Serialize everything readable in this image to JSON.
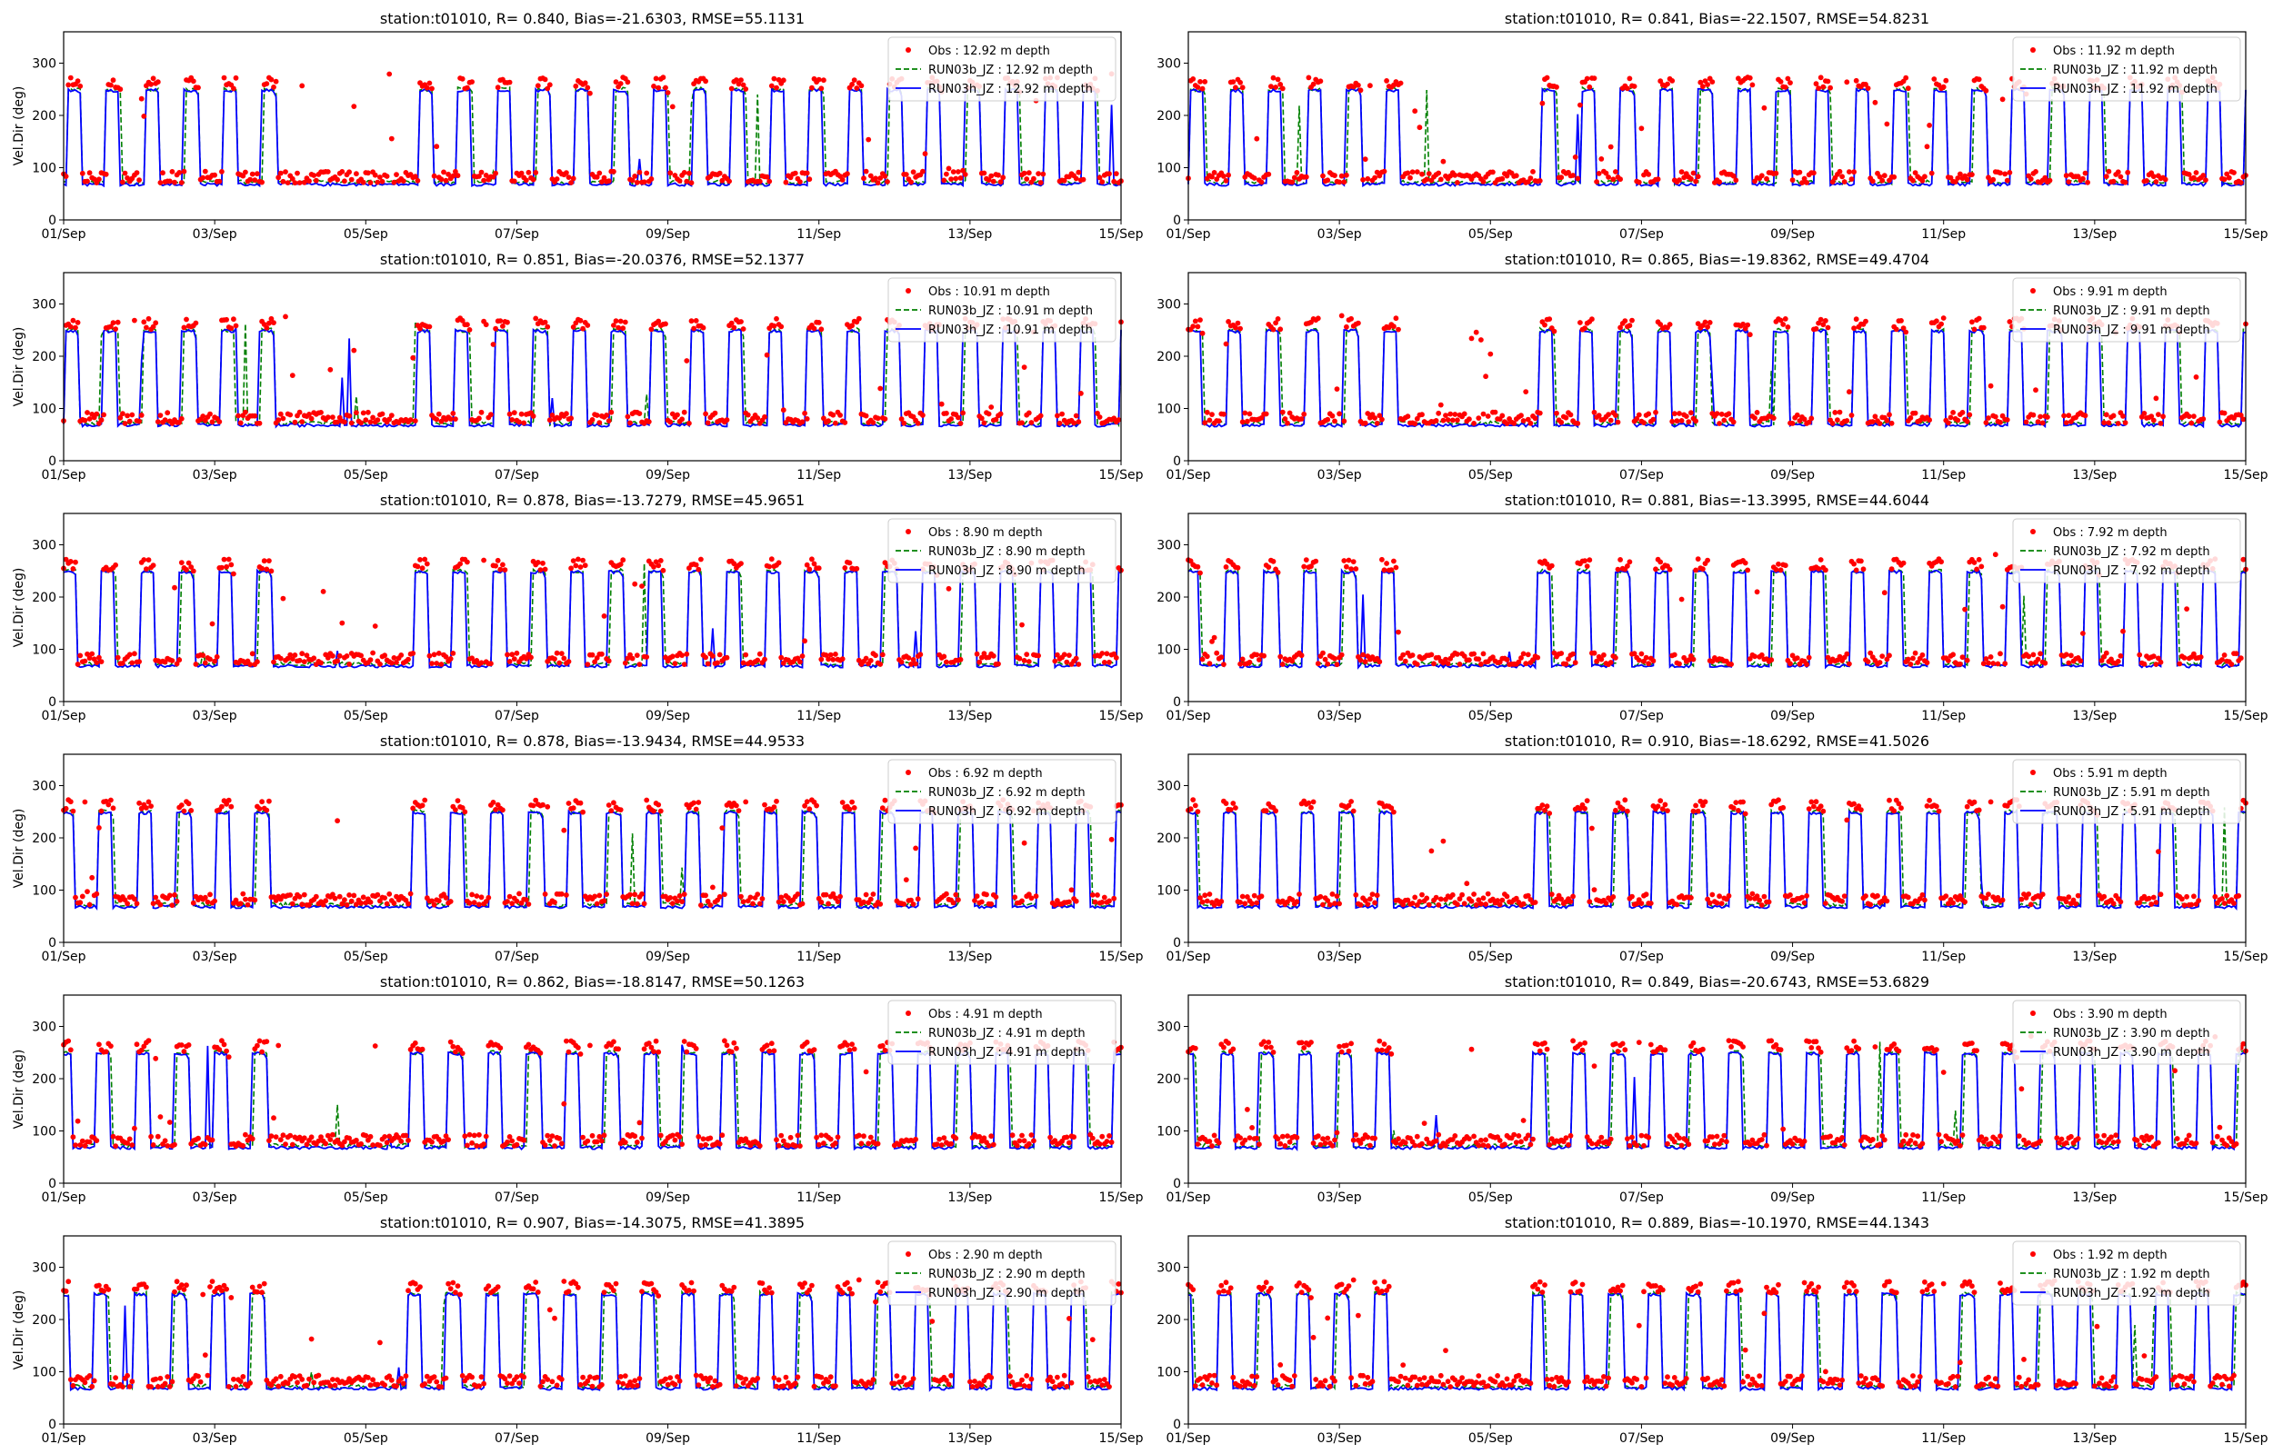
{
  "figure": {
    "ylabel": "Vel.Dir (deg)",
    "xticks": [
      "01/Sep",
      "03/Sep",
      "05/Sep",
      "07/Sep",
      "09/Sep",
      "11/Sep",
      "13/Sep",
      "15/Sep"
    ],
    "yticks": [
      0,
      100,
      200,
      300
    ],
    "colors": {
      "obs": "#ff0000",
      "run03b": "#008000",
      "run03h": "#0000ff",
      "axes": "#000000"
    }
  },
  "chart_data": [
    {
      "type": "line",
      "title": "station:t01010, R= 0.840, Bias=-21.6303, RMSE=55.1131",
      "depth": "12.92",
      "ylim": [
        0,
        360
      ],
      "xlim": [
        "01/Sep",
        "15/Sep"
      ],
      "legend": "top-right",
      "series": [
        {
          "name": "Obs : 12.92 m depth",
          "style": "dots",
          "levels": {
            "high": 262,
            "low": 82
          }
        },
        {
          "name": "RUN03b_JZ : 12.92 m depth",
          "style": "dashed",
          "levels": {
            "high": 250,
            "low": 72
          }
        },
        {
          "name": "RUN03h_JZ : 12.92 m depth",
          "style": "solid",
          "levels": {
            "high": 248,
            "low": 68
          }
        }
      ]
    },
    {
      "type": "line",
      "title": "station:t01010, R= 0.841, Bias=-22.1507, RMSE=54.8231",
      "depth": "11.92",
      "ylim": [
        0,
        360
      ],
      "xlim": [
        "01/Sep",
        "15/Sep"
      ],
      "legend": "top-right",
      "series": [
        {
          "name": "Obs : 11.92 m depth",
          "style": "dots",
          "levels": {
            "high": 262,
            "low": 82
          }
        },
        {
          "name": "RUN03b_JZ : 11.92 m depth",
          "style": "dashed",
          "levels": {
            "high": 250,
            "low": 72
          }
        },
        {
          "name": "RUN03h_JZ : 11.92 m depth",
          "style": "solid",
          "levels": {
            "high": 248,
            "low": 68
          }
        }
      ]
    },
    {
      "type": "line",
      "title": "station:t01010, R= 0.851, Bias=-20.0376, RMSE=52.1377",
      "depth": "10.91",
      "ylim": [
        0,
        360
      ],
      "xlim": [
        "01/Sep",
        "15/Sep"
      ],
      "legend": "top-right",
      "series": [
        {
          "name": "Obs : 10.91 m depth",
          "style": "dots",
          "levels": {
            "high": 262,
            "low": 82
          }
        },
        {
          "name": "RUN03b_JZ : 10.91 m depth",
          "style": "dashed",
          "levels": {
            "high": 250,
            "low": 72
          }
        },
        {
          "name": "RUN03h_JZ : 10.91 m depth",
          "style": "solid",
          "levels": {
            "high": 248,
            "low": 68
          }
        }
      ]
    },
    {
      "type": "line",
      "title": "station:t01010, R= 0.865, Bias=-19.8362, RMSE=49.4704",
      "depth": "9.91",
      "ylim": [
        0,
        360
      ],
      "xlim": [
        "01/Sep",
        "15/Sep"
      ],
      "legend": "top-right",
      "series": [
        {
          "name": "Obs : 9.91 m depth",
          "style": "dots",
          "levels": {
            "high": 262,
            "low": 82
          }
        },
        {
          "name": "RUN03b_JZ : 9.91 m depth",
          "style": "dashed",
          "levels": {
            "high": 250,
            "low": 72
          }
        },
        {
          "name": "RUN03h_JZ : 9.91 m depth",
          "style": "solid",
          "levels": {
            "high": 248,
            "low": 68
          }
        }
      ]
    },
    {
      "type": "line",
      "title": "station:t01010, R= 0.878, Bias=-13.7279, RMSE=45.9651",
      "depth": "8.90",
      "ylim": [
        0,
        360
      ],
      "xlim": [
        "01/Sep",
        "15/Sep"
      ],
      "legend": "top-right",
      "series": [
        {
          "name": "Obs : 8.90 m depth",
          "style": "dots",
          "levels": {
            "high": 262,
            "low": 82
          }
        },
        {
          "name": "RUN03b_JZ : 8.90 m depth",
          "style": "dashed",
          "levels": {
            "high": 250,
            "low": 72
          }
        },
        {
          "name": "RUN03h_JZ : 8.90 m depth",
          "style": "solid",
          "levels": {
            "high": 248,
            "low": 68
          }
        }
      ]
    },
    {
      "type": "line",
      "title": "station:t01010, R= 0.881, Bias=-13.3995, RMSE=44.6044",
      "depth": "7.92",
      "ylim": [
        0,
        360
      ],
      "xlim": [
        "01/Sep",
        "15/Sep"
      ],
      "legend": "top-right",
      "series": [
        {
          "name": "Obs : 7.92 m depth",
          "style": "dots",
          "levels": {
            "high": 262,
            "low": 82
          }
        },
        {
          "name": "RUN03b_JZ : 7.92 m depth",
          "style": "dashed",
          "levels": {
            "high": 250,
            "low": 72
          }
        },
        {
          "name": "RUN03h_JZ : 7.92 m depth",
          "style": "solid",
          "levels": {
            "high": 248,
            "low": 68
          }
        }
      ]
    },
    {
      "type": "line",
      "title": "station:t01010, R= 0.878, Bias=-13.9434, RMSE=44.9533",
      "depth": "6.92",
      "ylim": [
        0,
        360
      ],
      "xlim": [
        "01/Sep",
        "15/Sep"
      ],
      "legend": "top-right",
      "series": [
        {
          "name": "Obs : 6.92 m depth",
          "style": "dots",
          "levels": {
            "high": 262,
            "low": 82
          }
        },
        {
          "name": "RUN03b_JZ : 6.92 m depth",
          "style": "dashed",
          "levels": {
            "high": 250,
            "low": 72
          }
        },
        {
          "name": "RUN03h_JZ : 6.92 m depth",
          "style": "solid",
          "levels": {
            "high": 248,
            "low": 68
          }
        }
      ]
    },
    {
      "type": "line",
      "title": "station:t01010, R= 0.910, Bias=-18.6292, RMSE=41.5026",
      "depth": "5.91",
      "ylim": [
        0,
        360
      ],
      "xlim": [
        "01/Sep",
        "15/Sep"
      ],
      "legend": "top-right",
      "series": [
        {
          "name": "Obs : 5.91 m depth",
          "style": "dots",
          "levels": {
            "high": 262,
            "low": 82
          }
        },
        {
          "name": "RUN03b_JZ : 5.91 m depth",
          "style": "dashed",
          "levels": {
            "high": 250,
            "low": 72
          }
        },
        {
          "name": "RUN03h_JZ : 5.91 m depth",
          "style": "solid",
          "levels": {
            "high": 248,
            "low": 68
          }
        }
      ]
    },
    {
      "type": "line",
      "title": "station:t01010, R= 0.862, Bias=-18.8147, RMSE=50.1263",
      "depth": "4.91",
      "ylim": [
        0,
        360
      ],
      "xlim": [
        "01/Sep",
        "15/Sep"
      ],
      "legend": "top-right",
      "series": [
        {
          "name": "Obs : 4.91 m depth",
          "style": "dots",
          "levels": {
            "high": 262,
            "low": 82
          }
        },
        {
          "name": "RUN03b_JZ : 4.91 m depth",
          "style": "dashed",
          "levels": {
            "high": 250,
            "low": 72
          }
        },
        {
          "name": "RUN03h_JZ : 4.91 m depth",
          "style": "solid",
          "levels": {
            "high": 248,
            "low": 68
          }
        }
      ]
    },
    {
      "type": "line",
      "title": "station:t01010, R= 0.849, Bias=-20.6743, RMSE=53.6829",
      "depth": "3.90",
      "ylim": [
        0,
        360
      ],
      "xlim": [
        "01/Sep",
        "15/Sep"
      ],
      "legend": "top-right",
      "series": [
        {
          "name": "Obs : 3.90 m depth",
          "style": "dots",
          "levels": {
            "high": 262,
            "low": 82
          }
        },
        {
          "name": "RUN03b_JZ : 3.90 m depth",
          "style": "dashed",
          "levels": {
            "high": 250,
            "low": 72
          }
        },
        {
          "name": "RUN03h_JZ : 3.90 m depth",
          "style": "solid",
          "levels": {
            "high": 248,
            "low": 68
          }
        }
      ]
    },
    {
      "type": "line",
      "title": "station:t01010, R= 0.907, Bias=-14.3075, RMSE=41.3895",
      "depth": "2.90",
      "ylim": [
        0,
        360
      ],
      "xlim": [
        "01/Sep",
        "15/Sep"
      ],
      "legend": "top-right",
      "series": [
        {
          "name": "Obs : 2.90 m depth",
          "style": "dots",
          "levels": {
            "high": 262,
            "low": 82
          }
        },
        {
          "name": "RUN03b_JZ : 2.90 m depth",
          "style": "dashed",
          "levels": {
            "high": 250,
            "low": 72
          }
        },
        {
          "name": "RUN03h_JZ : 2.90 m depth",
          "style": "solid",
          "levels": {
            "high": 248,
            "low": 68
          }
        }
      ]
    },
    {
      "type": "line",
      "title": "station:t01010, R= 0.889, Bias=-10.1970, RMSE=44.1343",
      "depth": "1.92",
      "ylim": [
        0,
        360
      ],
      "xlim": [
        "01/Sep",
        "15/Sep"
      ],
      "legend": "top-right",
      "series": [
        {
          "name": "Obs : 1.92 m depth",
          "style": "dots",
          "levels": {
            "high": 262,
            "low": 82
          }
        },
        {
          "name": "RUN03b_JZ : 1.92 m depth",
          "style": "dashed",
          "levels": {
            "high": 250,
            "low": 72
          }
        },
        {
          "name": "RUN03h_JZ : 1.92 m depth",
          "style": "solid",
          "levels": {
            "high": 248,
            "low": 68
          }
        }
      ]
    }
  ]
}
